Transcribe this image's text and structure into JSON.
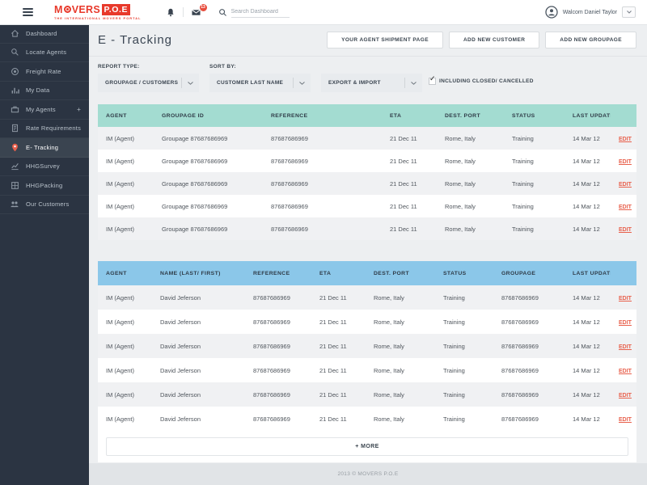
{
  "colors": {
    "accent": "#e8392b",
    "edit_link": "#e8604c",
    "sidebar_bg": "#2b3442",
    "groupage_header_bg": "#a3dcd1",
    "customers_header_bg": "#8bc7e9",
    "badge_bg": "#e74c3c"
  },
  "topbar": {
    "logo_left": "M",
    "logo_right": "VERS",
    "logo_box": "P.O.E",
    "tagline": "THE INTERNATIONAL MOVERS PORTAL",
    "message_badge": "13",
    "search_placeholder": "Search Dashboard",
    "user_name": "Walcom Daniel Taylor"
  },
  "sidebar": {
    "items": [
      {
        "slug": "dashboard",
        "label": "Dashboard",
        "icon": "home-icon",
        "active": false
      },
      {
        "slug": "locate-agents",
        "label": "Locate Agents",
        "icon": "search-icon",
        "active": false
      },
      {
        "slug": "freight-rate",
        "label": "Freight Rate",
        "icon": "coin-icon",
        "active": false
      },
      {
        "slug": "my-data",
        "label": "My Data",
        "icon": "bar-chart-icon",
        "active": false
      },
      {
        "slug": "my-agents",
        "label": "My Agents",
        "icon": "briefcase-icon",
        "active": false,
        "suffix": "+"
      },
      {
        "slug": "rate-requirements",
        "label": "Rate Requirements",
        "icon": "document-icon",
        "active": false
      },
      {
        "slug": "e-tracking",
        "label": "E- Tracking",
        "icon": "map-pin-icon",
        "active": true
      },
      {
        "slug": "hhgsurvey",
        "label": "HHGSurvey",
        "icon": "line-chart-icon",
        "active": false
      },
      {
        "slug": "hhgpacking",
        "label": "HHGPacking",
        "icon": "package-icon",
        "active": false
      },
      {
        "slug": "our-customers",
        "label": "Our Customers",
        "icon": "people-icon",
        "active": false
      }
    ]
  },
  "page": {
    "title": "E - Tracking",
    "actions": {
      "agent_shipment": "YOUR AGENT SHIPMENT PAGE",
      "add_customer": "ADD NEW CUSTOMER",
      "add_groupage": "ADD NEW GROUPAGE"
    }
  },
  "filters": {
    "report_type_label": "REPORT TYPE:",
    "report_type_value": "GROUPAGE / CUSTOMERS",
    "sort_by_label": "SORT BY:",
    "sort_by_value_1": "CUSTOMER LAST NAME",
    "sort_by_value_2": "EXPORT & IMPORT",
    "checkbox_label": "INCLUDING CLOSED/ CANCELLED",
    "checkbox_checked": true
  },
  "tables": [
    {
      "id": "groupage-table",
      "css": "t1",
      "columns": [
        "AGENT",
        "GROUPAGE ID",
        "REFERENCE",
        "ETA",
        "DEST. PORT",
        "STATUS",
        "LAST UPDATE",
        ""
      ],
      "rows": [
        [
          "IM (Agent)",
          "Groupage 87687686969",
          "87687686969",
          "21 Dec 11",
          "Rome, Italy",
          "Training",
          "14 Mar 12",
          "EDIT"
        ],
        [
          "IM (Agent)",
          "Groupage 87687686969",
          "87687686969",
          "21 Dec 11",
          "Rome, Italy",
          "Training",
          "14 Mar 12",
          "EDIT"
        ],
        [
          "IM (Agent)",
          "Groupage 87687686969",
          "87687686969",
          "21 Dec 11",
          "Rome, Italy",
          "Training",
          "14 Mar 12",
          "EDIT"
        ],
        [
          "IM (Agent)",
          "Groupage 87687686969",
          "87687686969",
          "21 Dec 11",
          "Rome, Italy",
          "Training",
          "14 Mar 12",
          "EDIT"
        ],
        [
          "IM (Agent)",
          "Groupage 87687686969",
          "87687686969",
          "21 Dec 11",
          "Rome, Italy",
          "Training",
          "14 Mar 12",
          "EDIT"
        ]
      ]
    },
    {
      "id": "customers-table",
      "css": "t2",
      "columns": [
        "AGENT",
        "NAME (LAST/ FIRST)",
        "REFERENCE",
        "ETA",
        "DEST. PORT",
        "STATUS",
        "GROUPAGE",
        "LAST UPDATE",
        ""
      ],
      "rows": [
        [
          "IM (Agent)",
          "David Jeferson",
          "87687686969",
          "21 Dec 11",
          "Rome, Italy",
          "Training",
          "87687686969",
          "14 Mar 12",
          "EDIT"
        ],
        [
          "IM (Agent)",
          "David Jeferson",
          "87687686969",
          "21 Dec 11",
          "Rome, Italy",
          "Training",
          "87687686969",
          "14 Mar 12",
          "EDIT"
        ],
        [
          "IM (Agent)",
          "David Jeferson",
          "87687686969",
          "21 Dec 11",
          "Rome, Italy",
          "Training",
          "87687686969",
          "14 Mar 12",
          "EDIT"
        ],
        [
          "IM (Agent)",
          "David Jeferson",
          "87687686969",
          "21 Dec 11",
          "Rome, Italy",
          "Training",
          "87687686969",
          "14 Mar 12",
          "EDIT"
        ],
        [
          "IM (Agent)",
          "David Jeferson",
          "87687686969",
          "21 Dec 11",
          "Rome, Italy",
          "Training",
          "87687686969",
          "14 Mar 12",
          "EDIT"
        ],
        [
          "IM (Agent)",
          "David Jeferson",
          "87687686969",
          "21 Dec 11",
          "Rome, Italy",
          "Training",
          "87687686969",
          "14 Mar 12",
          "EDIT"
        ]
      ]
    }
  ],
  "more_button_label": "+ MORE",
  "footer_text": "2013 © MOVERS P.O.E"
}
